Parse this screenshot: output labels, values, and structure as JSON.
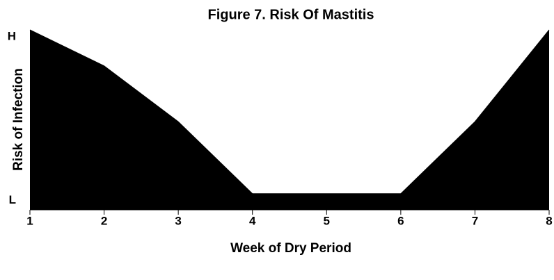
{
  "chart_data": {
    "type": "area",
    "title": "Figure 7.  Risk Of Mastitis",
    "xlabel": "Week of Dry Period",
    "ylabel": "Risk of Infection",
    "x": [
      1,
      2,
      3,
      4,
      5,
      6,
      7,
      8
    ],
    "values": [
      100,
      80,
      49,
      9,
      9,
      9,
      49,
      100
    ],
    "color": "#000000",
    "xlim": [
      1,
      8
    ],
    "xticks": [
      1,
      2,
      3,
      4,
      5,
      6,
      7,
      8
    ],
    "ylim": [
      0,
      100
    ],
    "yticks": [
      {
        "value": 9,
        "label": "L"
      },
      {
        "value": 100,
        "label": "H"
      }
    ]
  }
}
